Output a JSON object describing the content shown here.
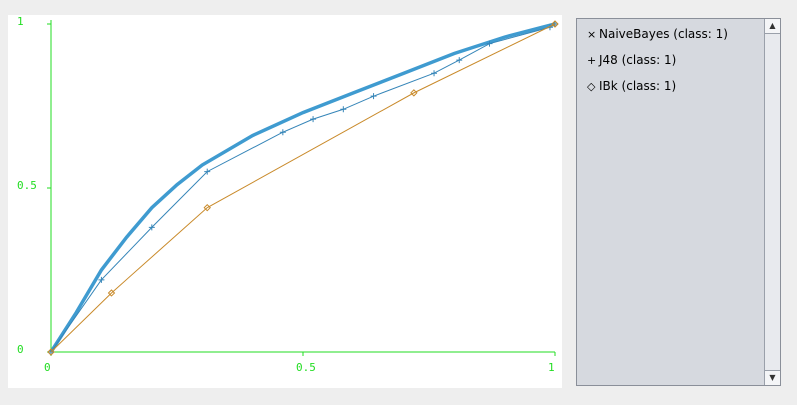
{
  "chart_data": {
    "type": "line",
    "xlim": [
      0,
      1
    ],
    "ylim": [
      0,
      1
    ],
    "xticks": [
      0,
      0.5,
      1
    ],
    "yticks": [
      0,
      0.5,
      1
    ],
    "axis_color": "#22dd22",
    "series": [
      {
        "name": "NaiveBayes (class: 1)",
        "color": "#3f9bd0",
        "x": [
          0,
          0.05,
          0.1,
          0.15,
          0.2,
          0.25,
          0.3,
          0.4,
          0.5,
          0.6,
          0.7,
          0.8,
          0.9,
          1
        ],
        "values": [
          0,
          0.12,
          0.25,
          0.35,
          0.44,
          0.51,
          0.57,
          0.66,
          0.73,
          0.79,
          0.85,
          0.91,
          0.96,
          1
        ]
      },
      {
        "name": "J48 (class: 1)",
        "color": "#3585b8",
        "x": [
          0,
          0.1,
          0.2,
          0.31,
          0.46,
          0.52,
          0.58,
          0.64,
          0.76,
          0.81,
          0.87,
          0.99,
          1
        ],
        "values": [
          0,
          0.22,
          0.38,
          0.55,
          0.67,
          0.71,
          0.74,
          0.78,
          0.85,
          0.89,
          0.94,
          0.99,
          1
        ]
      },
      {
        "name": "IBk (class: 1)",
        "color": "#c98a2a",
        "x": [
          0,
          0.12,
          0.31,
          0.72,
          1
        ],
        "values": [
          0,
          0.18,
          0.44,
          0.79,
          1
        ]
      }
    ]
  }
}
